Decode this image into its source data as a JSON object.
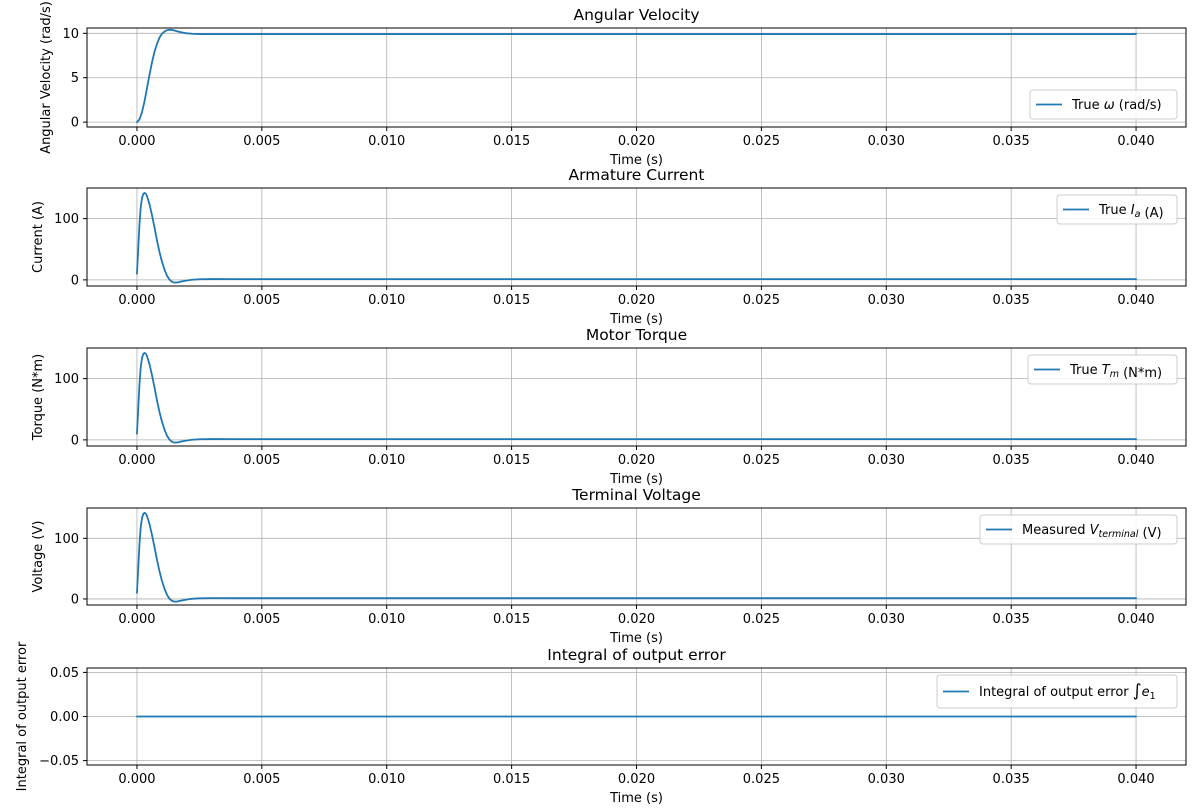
{
  "chart_data": [
    {
      "type": "line",
      "title": "Angular Velocity",
      "xlabel": "Time (s)",
      "ylabel": "Angular Velocity (rad/s)",
      "xlim": [
        -0.002,
        0.042
      ],
      "ylim": [
        -0.55,
        10.6
      ],
      "xticks": [
        0.0,
        0.005,
        0.01,
        0.015,
        0.02,
        0.025,
        0.03,
        0.035,
        0.04
      ],
      "xtick_labels": [
        "0.000",
        "0.005",
        "0.010",
        "0.015",
        "0.020",
        "0.025",
        "0.030",
        "0.035",
        "0.040"
      ],
      "yticks": [
        0,
        5,
        10
      ],
      "ytick_labels": [
        "0",
        "5",
        "10"
      ],
      "grid": true,
      "legend_position": "lower-right",
      "series": [
        {
          "name": "True ω (rad/s)",
          "legend_parts": [
            {
              "text": "True "
            },
            {
              "text": "ω",
              "italic": true
            },
            {
              "text": " (rad/s)"
            }
          ],
          "color": "#1f77b4",
          "x": [
            0,
            0.0001,
            0.0002,
            0.0003,
            0.0004,
            0.0005,
            0.0006,
            0.0007,
            0.0008,
            0.0009,
            0.001,
            0.0011,
            0.0012,
            0.0013,
            0.0014,
            0.0015,
            0.0016,
            0.0018,
            0.002,
            0.0022,
            0.0025,
            0.003,
            0.005,
            0.01,
            0.02,
            0.03,
            0.04
          ],
          "y": [
            0,
            0.3,
            1.1,
            2.3,
            3.8,
            5.3,
            6.7,
            7.9,
            8.8,
            9.5,
            9.95,
            10.2,
            10.35,
            10.4,
            10.38,
            10.32,
            10.24,
            10.1,
            10.0,
            9.95,
            9.92,
            9.92,
            9.92,
            9.92,
            9.92,
            9.92,
            9.92
          ]
        }
      ]
    },
    {
      "type": "line",
      "title": "Armature Current",
      "xlabel": "Time (s)",
      "ylabel": "Current (A)",
      "xlim": [
        -0.002,
        0.042
      ],
      "ylim": [
        -10,
        150
      ],
      "xticks": [
        0.0,
        0.005,
        0.01,
        0.015,
        0.02,
        0.025,
        0.03,
        0.035,
        0.04
      ],
      "xtick_labels": [
        "0.000",
        "0.005",
        "0.010",
        "0.015",
        "0.020",
        "0.025",
        "0.030",
        "0.035",
        "0.040"
      ],
      "yticks": [
        0,
        100
      ],
      "ytick_labels": [
        "0",
        "100"
      ],
      "grid": true,
      "legend_position": "upper-right",
      "series": [
        {
          "name": "True Ia (A)",
          "legend_parts": [
            {
              "text": "True "
            },
            {
              "text": "I",
              "italic": true
            },
            {
              "text": "a",
              "italic": true,
              "sub": true
            },
            {
              "text": " (A)"
            }
          ],
          "color": "#1f77b4",
          "x": [
            0,
            5e-05,
            0.0001,
            0.00015,
            0.0002,
            0.00025,
            0.0003,
            0.00035,
            0.0004,
            0.0005,
            0.0006,
            0.0007,
            0.0008,
            0.0009,
            0.001,
            0.0011,
            0.0012,
            0.0013,
            0.0014,
            0.0015,
            0.0016,
            0.0017,
            0.0018,
            0.002,
            0.0022,
            0.0025,
            0.003,
            0.004,
            0.01,
            0.02,
            0.03,
            0.04
          ],
          "y": [
            10,
            50,
            90,
            118,
            133,
            140,
            142,
            141,
            137,
            124,
            106,
            86,
            65,
            46,
            30,
            17,
            7,
            0.5,
            -3,
            -4.5,
            -4.2,
            -3.5,
            -2.5,
            -1,
            0.2,
            1,
            1.3,
            1.2,
            1.2,
            1.2,
            1.2,
            1.2
          ]
        }
      ]
    },
    {
      "type": "line",
      "title": "Motor Torque",
      "xlabel": "Time (s)",
      "ylabel": "Torque (N*m)",
      "xlim": [
        -0.002,
        0.042
      ],
      "ylim": [
        -10,
        150
      ],
      "xticks": [
        0.0,
        0.005,
        0.01,
        0.015,
        0.02,
        0.025,
        0.03,
        0.035,
        0.04
      ],
      "xtick_labels": [
        "0.000",
        "0.005",
        "0.010",
        "0.015",
        "0.020",
        "0.025",
        "0.030",
        "0.035",
        "0.040"
      ],
      "yticks": [
        0,
        100
      ],
      "ytick_labels": [
        "0",
        "100"
      ],
      "grid": true,
      "legend_position": "upper-right",
      "series": [
        {
          "name": "True Tm (N*m)",
          "legend_parts": [
            {
              "text": "True "
            },
            {
              "text": "T",
              "italic": true
            },
            {
              "text": "m",
              "italic": true,
              "sub": true
            },
            {
              "text": " (N*m)"
            }
          ],
          "color": "#1f77b4",
          "x": [
            0,
            5e-05,
            0.0001,
            0.00015,
            0.0002,
            0.00025,
            0.0003,
            0.00035,
            0.0004,
            0.0005,
            0.0006,
            0.0007,
            0.0008,
            0.0009,
            0.001,
            0.0011,
            0.0012,
            0.0013,
            0.0014,
            0.0015,
            0.0016,
            0.0017,
            0.0018,
            0.002,
            0.0022,
            0.0025,
            0.003,
            0.004,
            0.01,
            0.02,
            0.03,
            0.04
          ],
          "y": [
            10,
            50,
            90,
            118,
            133,
            140,
            142,
            141,
            137,
            124,
            106,
            86,
            65,
            46,
            30,
            17,
            7,
            0.5,
            -3,
            -4.5,
            -4.2,
            -3.5,
            -2.5,
            -1,
            0.2,
            1,
            1.3,
            1.2,
            1.2,
            1.2,
            1.2,
            1.2
          ]
        }
      ]
    },
    {
      "type": "line",
      "title": "Terminal Voltage",
      "xlabel": "Time (s)",
      "ylabel": "Voltage (V)",
      "xlim": [
        -0.002,
        0.042
      ],
      "ylim": [
        -10,
        150
      ],
      "xticks": [
        0.0,
        0.005,
        0.01,
        0.015,
        0.02,
        0.025,
        0.03,
        0.035,
        0.04
      ],
      "xtick_labels": [
        "0.000",
        "0.005",
        "0.010",
        "0.015",
        "0.020",
        "0.025",
        "0.030",
        "0.035",
        "0.040"
      ],
      "yticks": [
        0,
        100
      ],
      "ytick_labels": [
        "0",
        "100"
      ],
      "grid": true,
      "legend_position": "upper-right",
      "series": [
        {
          "name": "Measured Vterminal (V)",
          "legend_parts": [
            {
              "text": "Measured "
            },
            {
              "text": "V",
              "italic": true
            },
            {
              "text": "terminal",
              "italic": true,
              "sub": true
            },
            {
              "text": " (V)"
            }
          ],
          "color": "#1f77b4",
          "x": [
            0,
            5e-05,
            0.0001,
            0.00015,
            0.0002,
            0.00025,
            0.0003,
            0.00035,
            0.0004,
            0.0005,
            0.0006,
            0.0007,
            0.0008,
            0.0009,
            0.001,
            0.0011,
            0.0012,
            0.0013,
            0.0014,
            0.0015,
            0.0016,
            0.0017,
            0.0018,
            0.002,
            0.0022,
            0.0025,
            0.003,
            0.004,
            0.01,
            0.02,
            0.03,
            0.04
          ],
          "y": [
            10,
            50,
            90,
            118,
            133,
            140,
            142,
            141,
            137,
            124,
            106,
            86,
            65,
            46,
            30,
            17,
            7,
            0.5,
            -3,
            -4.5,
            -4.2,
            -3.5,
            -2.5,
            -1,
            0.2,
            1,
            1.3,
            1.2,
            1.2,
            1.2,
            1.2,
            1.2
          ]
        }
      ]
    },
    {
      "type": "line",
      "title": "Integral of output error",
      "xlabel": "Time (s)",
      "ylabel": "Integral of output error",
      "xlim": [
        -0.002,
        0.042
      ],
      "ylim": [
        -0.055,
        0.055
      ],
      "xticks": [
        0.0,
        0.005,
        0.01,
        0.015,
        0.02,
        0.025,
        0.03,
        0.035,
        0.04
      ],
      "xtick_labels": [
        "0.000",
        "0.005",
        "0.010",
        "0.015",
        "0.020",
        "0.025",
        "0.030",
        "0.035",
        "0.040"
      ],
      "yticks": [
        -0.05,
        0.0,
        0.05
      ],
      "ytick_labels": [
        "−0.05",
        "0.00",
        "0.05"
      ],
      "grid": true,
      "legend_position": "upper-right",
      "series": [
        {
          "name": "Integral of output error ∫e1",
          "legend_parts": [
            {
              "text": "Integral of output error "
            },
            {
              "text": "∫",
              "big": true
            },
            {
              "text": "e",
              "italic": true
            },
            {
              "text": "1",
              "sub": true
            }
          ],
          "color": "#1f77b4",
          "x": [
            0,
            0.04
          ],
          "y": [
            0,
            0
          ]
        }
      ]
    }
  ]
}
